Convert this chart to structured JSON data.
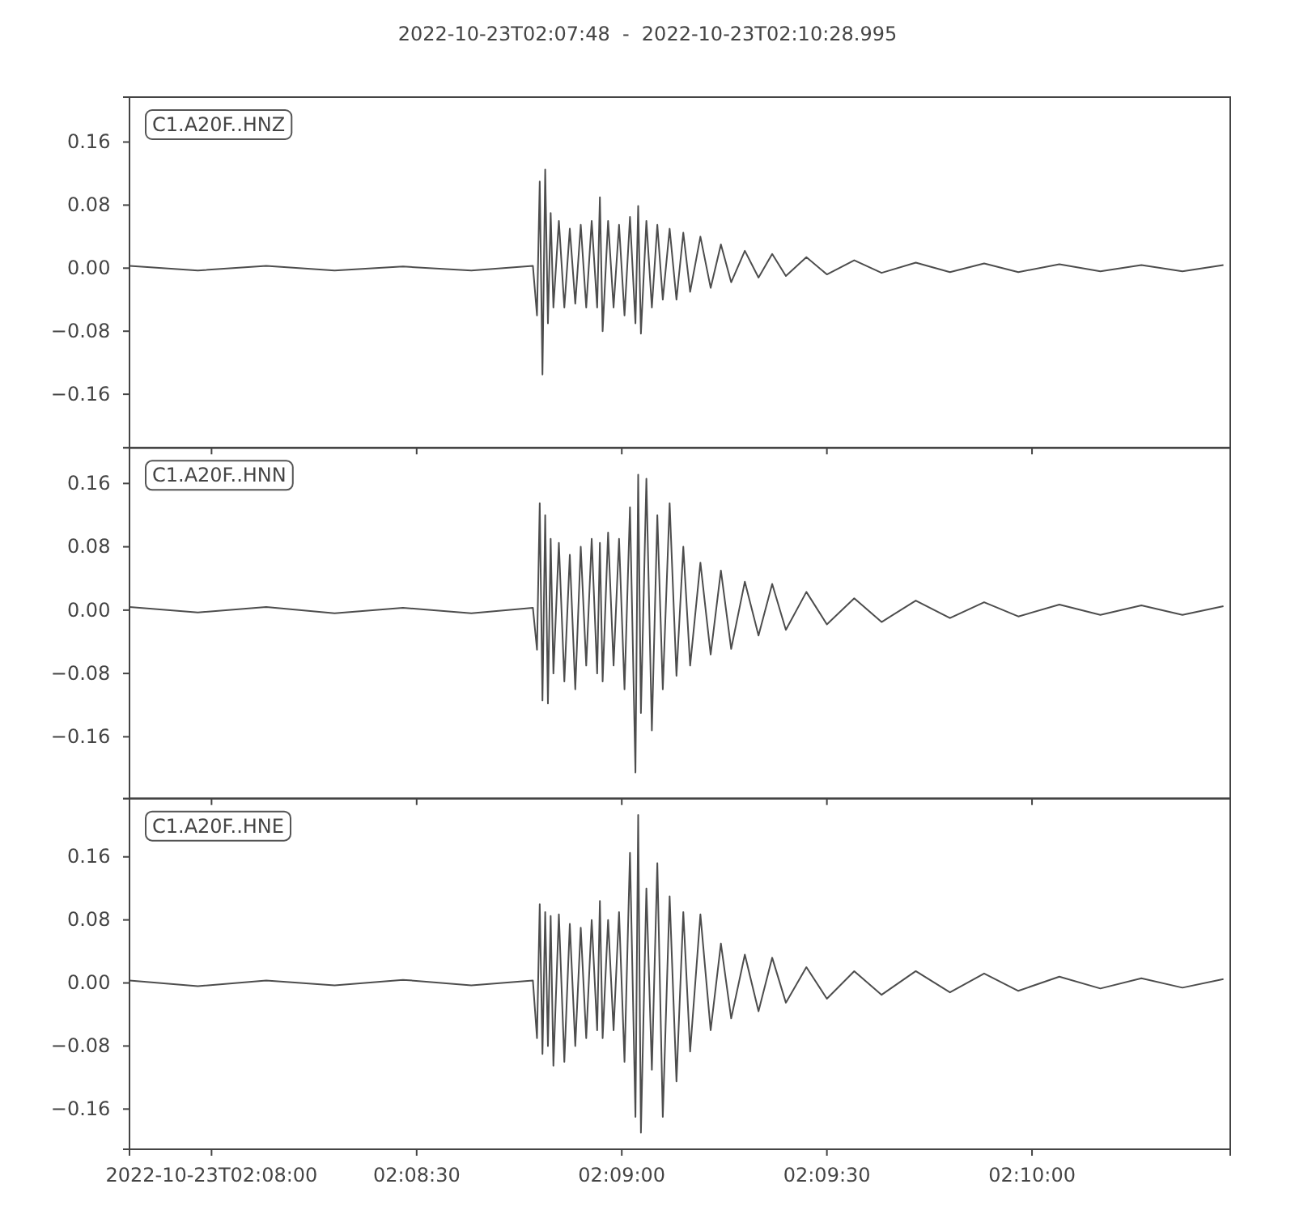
{
  "chart_data": [
    {
      "type": "line",
      "title": "2022-10-23T02:07:48  -  2022-10-23T02:10:28.995",
      "annotations": [
        "C1.A20F..HNZ"
      ],
      "tick_labels": "y",
      "color": "#4d4d4d",
      "x": [
        "2022-10-23T02:07:48",
        "2022-10-23T02:07:58",
        "2022-10-23T02:08:08",
        "2022-10-23T02:08:18",
        "2022-10-23T02:08:28",
        "2022-10-23T02:08:38",
        "2022-10-23T02:08:47",
        "2022-10-23T02:08:47.6",
        "2022-10-23T02:08:48",
        "2022-10-23T02:08:48.4",
        "2022-10-23T02:08:48.8",
        "2022-10-23T02:08:49.2",
        "2022-10-23T02:08:49.6",
        "2022-10-23T02:08:50",
        "2022-10-23T02:08:50.8",
        "2022-10-23T02:08:51.6",
        "2022-10-23T02:08:52.4",
        "2022-10-23T02:08:53.2",
        "2022-10-23T02:08:54",
        "2022-10-23T02:08:54.8",
        "2022-10-23T02:08:55.6",
        "2022-10-23T02:08:56.4",
        "2022-10-23T02:08:56.8",
        "2022-10-23T02:08:57.2",
        "2022-10-23T02:08:58",
        "2022-10-23T02:08:58.8",
        "2022-10-23T02:08:59.6",
        "2022-10-23T02:09:00.4",
        "2022-10-23T02:09:01.2",
        "2022-10-23T02:09:02",
        "2022-10-23T02:09:02.4",
        "2022-10-23T02:09:02.8",
        "2022-10-23T02:09:03.6",
        "2022-10-23T02:09:04.4",
        "2022-10-23T02:09:05.2",
        "2022-10-23T02:09:06",
        "2022-10-23T02:09:07",
        "2022-10-23T02:09:08",
        "2022-10-23T02:09:09",
        "2022-10-23T02:09:10",
        "2022-10-23T02:09:11.5",
        "2022-10-23T02:09:13",
        "2022-10-23T02:09:14.5",
        "2022-10-23T02:09:16",
        "2022-10-23T02:09:18",
        "2022-10-23T02:09:20",
        "2022-10-23T02:09:22",
        "2022-10-23T02:09:24",
        "2022-10-23T02:09:27",
        "2022-10-23T02:09:30",
        "2022-10-23T02:09:34",
        "2022-10-23T02:09:38",
        "2022-10-23T02:09:43",
        "2022-10-23T02:09:48",
        "2022-10-23T02:09:53",
        "2022-10-23T02:09:58",
        "2022-10-23T02:10:04",
        "2022-10-23T02:10:10",
        "2022-10-23T02:10:16",
        "2022-10-23T02:10:22",
        "2022-10-23T02:10:28"
      ],
      "values": [
        0.003,
        -0.003,
        0.003,
        -0.003,
        0.002,
        -0.003,
        0.003,
        -0.06,
        0.11,
        -0.135,
        0.125,
        -0.07,
        0.07,
        -0.05,
        0.06,
        -0.05,
        0.05,
        -0.045,
        0.055,
        -0.05,
        0.06,
        -0.05,
        0.09,
        -0.08,
        0.06,
        -0.05,
        0.055,
        -0.06,
        0.065,
        -0.07,
        0.079,
        -0.083,
        0.06,
        -0.05,
        0.055,
        -0.04,
        0.05,
        -0.04,
        0.045,
        -0.03,
        0.04,
        -0.025,
        0.03,
        -0.018,
        0.022,
        -0.012,
        0.018,
        -0.01,
        0.014,
        -0.008,
        0.01,
        -0.006,
        0.007,
        -0.005,
        0.006,
        -0.005,
        0.005,
        -0.004,
        0.004,
        -0.004,
        0.004
      ],
      "xlim": [
        "2022-10-23T02:07:48",
        "2022-10-23T02:10:28.995"
      ],
      "xticks": [
        {
          "value": "2022-10-23T02:08:00",
          "label": null
        },
        {
          "value": "2022-10-23T02:08:30",
          "label": null
        },
        {
          "value": "2022-10-23T02:09:00",
          "label": null
        },
        {
          "value": "2022-10-23T02:09:30",
          "label": null
        },
        {
          "value": "2022-10-23T02:10:00",
          "label": null
        }
      ],
      "ylim": [
        -0.228,
        0.217
      ],
      "yticks": [
        {
          "value": -0.16,
          "label": "−0.16"
        },
        {
          "value": -0.08,
          "label": "−0.08"
        },
        {
          "value": 0,
          "label": "0.00"
        },
        {
          "value": 0.08,
          "label": "0.08"
        },
        {
          "value": 0.16,
          "label": "0.16"
        }
      ]
    },
    {
      "type": "line",
      "annotations": [
        "C1.A20F..HNN"
      ],
      "tick_labels": "y",
      "color": "#4d4d4d",
      "x": [
        "2022-10-23T02:07:48",
        "2022-10-23T02:07:58",
        "2022-10-23T02:08:08",
        "2022-10-23T02:08:18",
        "2022-10-23T02:08:28",
        "2022-10-23T02:08:38",
        "2022-10-23T02:08:47",
        "2022-10-23T02:08:47.6",
        "2022-10-23T02:08:48",
        "2022-10-23T02:08:48.4",
        "2022-10-23T02:08:48.8",
        "2022-10-23T02:08:49.2",
        "2022-10-23T02:08:49.6",
        "2022-10-23T02:08:50",
        "2022-10-23T02:08:50.8",
        "2022-10-23T02:08:51.6",
        "2022-10-23T02:08:52.4",
        "2022-10-23T02:08:53.2",
        "2022-10-23T02:08:54",
        "2022-10-23T02:08:54.8",
        "2022-10-23T02:08:55.6",
        "2022-10-23T02:08:56.4",
        "2022-10-23T02:08:56.8",
        "2022-10-23T02:08:57.2",
        "2022-10-23T02:08:58",
        "2022-10-23T02:08:58.8",
        "2022-10-23T02:08:59.6",
        "2022-10-23T02:09:00.4",
        "2022-10-23T02:09:01.2",
        "2022-10-23T02:09:02",
        "2022-10-23T02:09:02.4",
        "2022-10-23T02:09:02.8",
        "2022-10-23T02:09:03.6",
        "2022-10-23T02:09:04.4",
        "2022-10-23T02:09:05.2",
        "2022-10-23T02:09:06",
        "2022-10-23T02:09:07",
        "2022-10-23T02:09:08",
        "2022-10-23T02:09:09",
        "2022-10-23T02:09:10",
        "2022-10-23T02:09:11.5",
        "2022-10-23T02:09:13",
        "2022-10-23T02:09:14.5",
        "2022-10-23T02:09:16",
        "2022-10-23T02:09:18",
        "2022-10-23T02:09:20",
        "2022-10-23T02:09:22",
        "2022-10-23T02:09:24",
        "2022-10-23T02:09:27",
        "2022-10-23T02:09:30",
        "2022-10-23T02:09:34",
        "2022-10-23T02:09:38",
        "2022-10-23T02:09:43",
        "2022-10-23T02:09:48",
        "2022-10-23T02:09:53",
        "2022-10-23T02:09:58",
        "2022-10-23T02:10:04",
        "2022-10-23T02:10:10",
        "2022-10-23T02:10:16",
        "2022-10-23T02:10:22",
        "2022-10-23T02:10:28"
      ],
      "values": [
        0.004,
        -0.003,
        0.004,
        -0.004,
        0.003,
        -0.004,
        0.003,
        -0.05,
        0.135,
        -0.114,
        0.12,
        -0.118,
        0.09,
        -0.08,
        0.085,
        -0.09,
        0.07,
        -0.1,
        0.08,
        -0.07,
        0.09,
        -0.08,
        0.085,
        -0.09,
        0.098,
        -0.07,
        0.09,
        -0.1,
        0.13,
        -0.205,
        0.171,
        -0.13,
        0.166,
        -0.152,
        0.12,
        -0.1,
        0.135,
        -0.083,
        0.08,
        -0.07,
        0.06,
        -0.056,
        0.05,
        -0.049,
        0.036,
        -0.032,
        0.033,
        -0.025,
        0.023,
        -0.018,
        0.015,
        -0.015,
        0.012,
        -0.01,
        0.01,
        -0.008,
        0.007,
        -0.006,
        0.006,
        -0.006,
        0.005
      ],
      "xlim": [
        "2022-10-23T02:07:48",
        "2022-10-23T02:10:28.995"
      ],
      "xticks": [
        {
          "value": "2022-10-23T02:08:00",
          "label": null
        },
        {
          "value": "2022-10-23T02:08:30",
          "label": null
        },
        {
          "value": "2022-10-23T02:09:00",
          "label": null
        },
        {
          "value": "2022-10-23T02:09:30",
          "label": null
        },
        {
          "value": "2022-10-23T02:10:00",
          "label": null
        }
      ],
      "ylim": [
        -0.238,
        0.205
      ],
      "yticks": [
        {
          "value": -0.16,
          "label": "−0.16"
        },
        {
          "value": -0.08,
          "label": "−0.08"
        },
        {
          "value": 0,
          "label": "0.00"
        },
        {
          "value": 0.08,
          "label": "0.08"
        },
        {
          "value": 0.16,
          "label": "0.16"
        }
      ]
    },
    {
      "type": "line",
      "annotations": [
        "C1.A20F..HNE"
      ],
      "color": "#4d4d4d",
      "x": [
        "2022-10-23T02:07:48",
        "2022-10-23T02:07:58",
        "2022-10-23T02:08:08",
        "2022-10-23T02:08:18",
        "2022-10-23T02:08:28",
        "2022-10-23T02:08:38",
        "2022-10-23T02:08:47",
        "2022-10-23T02:08:47.6",
        "2022-10-23T02:08:48",
        "2022-10-23T02:08:48.4",
        "2022-10-23T02:08:48.8",
        "2022-10-23T02:08:49.2",
        "2022-10-23T02:08:49.6",
        "2022-10-23T02:08:50",
        "2022-10-23T02:08:50.8",
        "2022-10-23T02:08:51.6",
        "2022-10-23T02:08:52.4",
        "2022-10-23T02:08:53.2",
        "2022-10-23T02:08:54",
        "2022-10-23T02:08:54.8",
        "2022-10-23T02:08:55.6",
        "2022-10-23T02:08:56.4",
        "2022-10-23T02:08:56.8",
        "2022-10-23T02:08:57.2",
        "2022-10-23T02:08:58",
        "2022-10-23T02:08:58.8",
        "2022-10-23T02:08:59.6",
        "2022-10-23T02:09:00.4",
        "2022-10-23T02:09:01.2",
        "2022-10-23T02:09:02",
        "2022-10-23T02:09:02.4",
        "2022-10-23T02:09:02.8",
        "2022-10-23T02:09:03.6",
        "2022-10-23T02:09:04.4",
        "2022-10-23T02:09:05.2",
        "2022-10-23T02:09:06",
        "2022-10-23T02:09:07",
        "2022-10-23T02:09:08",
        "2022-10-23T02:09:09",
        "2022-10-23T02:09:10",
        "2022-10-23T02:09:11.5",
        "2022-10-23T02:09:13",
        "2022-10-23T02:09:14.5",
        "2022-10-23T02:09:16",
        "2022-10-23T02:09:18",
        "2022-10-23T02:09:20",
        "2022-10-23T02:09:22",
        "2022-10-23T02:09:24",
        "2022-10-23T02:09:27",
        "2022-10-23T02:09:30",
        "2022-10-23T02:09:34",
        "2022-10-23T02:09:38",
        "2022-10-23T02:09:43",
        "2022-10-23T02:09:48",
        "2022-10-23T02:09:53",
        "2022-10-23T02:09:58",
        "2022-10-23T02:10:04",
        "2022-10-23T02:10:10",
        "2022-10-23T02:10:16",
        "2022-10-23T02:10:22",
        "2022-10-23T02:10:28"
      ],
      "values": [
        0.003,
        -0.004,
        0.003,
        -0.003,
        0.004,
        -0.003,
        0.003,
        -0.07,
        0.1,
        -0.09,
        0.09,
        -0.08,
        0.085,
        -0.105,
        0.087,
        -0.1,
        0.075,
        -0.08,
        0.07,
        -0.07,
        0.08,
        -0.06,
        0.104,
        -0.07,
        0.08,
        -0.06,
        0.09,
        -0.1,
        0.165,
        -0.17,
        0.213,
        -0.19,
        0.12,
        -0.11,
        0.152,
        -0.17,
        0.11,
        -0.125,
        0.09,
        -0.087,
        0.087,
        -0.06,
        0.05,
        -0.045,
        0.036,
        -0.036,
        0.032,
        -0.025,
        0.02,
        -0.02,
        0.015,
        -0.015,
        0.015,
        -0.012,
        0.012,
        -0.01,
        0.008,
        -0.007,
        0.006,
        -0.006,
        0.005
      ],
      "xlim": [
        "2022-10-23T02:07:48",
        "2022-10-23T02:10:28.995"
      ],
      "xticks": [
        {
          "value": "2022-10-23T02:08:00",
          "label": "2022-10-23T02:08:00"
        },
        {
          "value": "2022-10-23T02:08:30",
          "label": "02:08:30"
        },
        {
          "value": "2022-10-23T02:09:00",
          "label": "02:09:00"
        },
        {
          "value": "2022-10-23T02:09:30",
          "label": "02:09:30"
        },
        {
          "value": "2022-10-23T02:10:00",
          "label": "02:10:00"
        }
      ],
      "ylim": [
        -0.211,
        0.234
      ],
      "yticks": [
        {
          "value": -0.16,
          "label": "−0.16"
        },
        {
          "value": -0.08,
          "label": "−0.08"
        },
        {
          "value": 0,
          "label": "0.00"
        },
        {
          "value": 0.08,
          "label": "0.08"
        },
        {
          "value": 0.16,
          "label": "0.16"
        }
      ]
    }
  ]
}
